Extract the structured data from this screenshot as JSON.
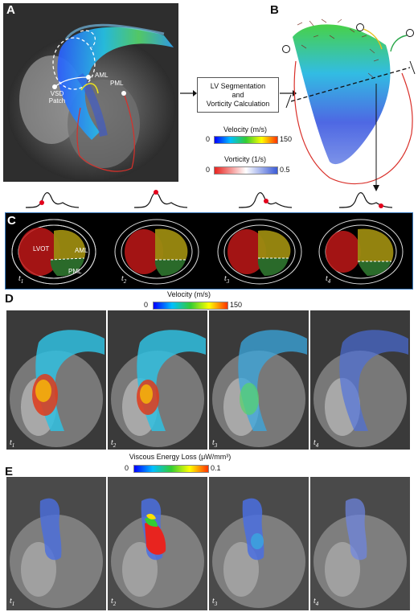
{
  "panels": {
    "A": {
      "letter": "A",
      "labels": {
        "aml": "AML",
        "pml": "PML",
        "vsd": "VSD Patch"
      }
    },
    "B": {
      "letter": "B"
    },
    "process": {
      "line1": "LV Segmentation",
      "line2": "and",
      "line3": "Vorticity Calculation"
    },
    "velocity_bar": {
      "title": "Velocity (m/s)",
      "min": "0",
      "max": "150",
      "colors": [
        "#0000ff",
        "#00bfff",
        "#33cc33",
        "#ffff00",
        "#ff3300"
      ]
    },
    "vorticity_bar": {
      "title": "Vorticity (1/s)",
      "min": "0",
      "max": "0.5",
      "colors": [
        "#e8241f",
        "#ffffff",
        "#3b5bd6"
      ]
    },
    "C": {
      "letter": "C",
      "labels": {
        "lvot": "LVOT",
        "aml": "AML",
        "pml": "PML"
      },
      "frames": [
        "t",
        "t",
        "t",
        "t"
      ],
      "subs": [
        "1",
        "2",
        "3",
        "4"
      ]
    },
    "D": {
      "letter": "D",
      "bar_title": "Velocity (m/s)",
      "min": "0",
      "max": "150",
      "frames": [
        "t",
        "t",
        "t",
        "t"
      ],
      "subs": [
        "1",
        "2",
        "3",
        "4"
      ]
    },
    "E": {
      "letter": "E",
      "bar_title": "Viscous Energy Loss (μW/mm³)",
      "min": "0",
      "max": "0.1",
      "frames": [
        "t",
        "t",
        "t",
        "t"
      ],
      "subs": [
        "1",
        "2",
        "3",
        "4"
      ]
    }
  },
  "colors": {
    "frame_border": "#3b7bbf",
    "lv_outline": "#d9302a",
    "red_dot": "#e3001b"
  }
}
